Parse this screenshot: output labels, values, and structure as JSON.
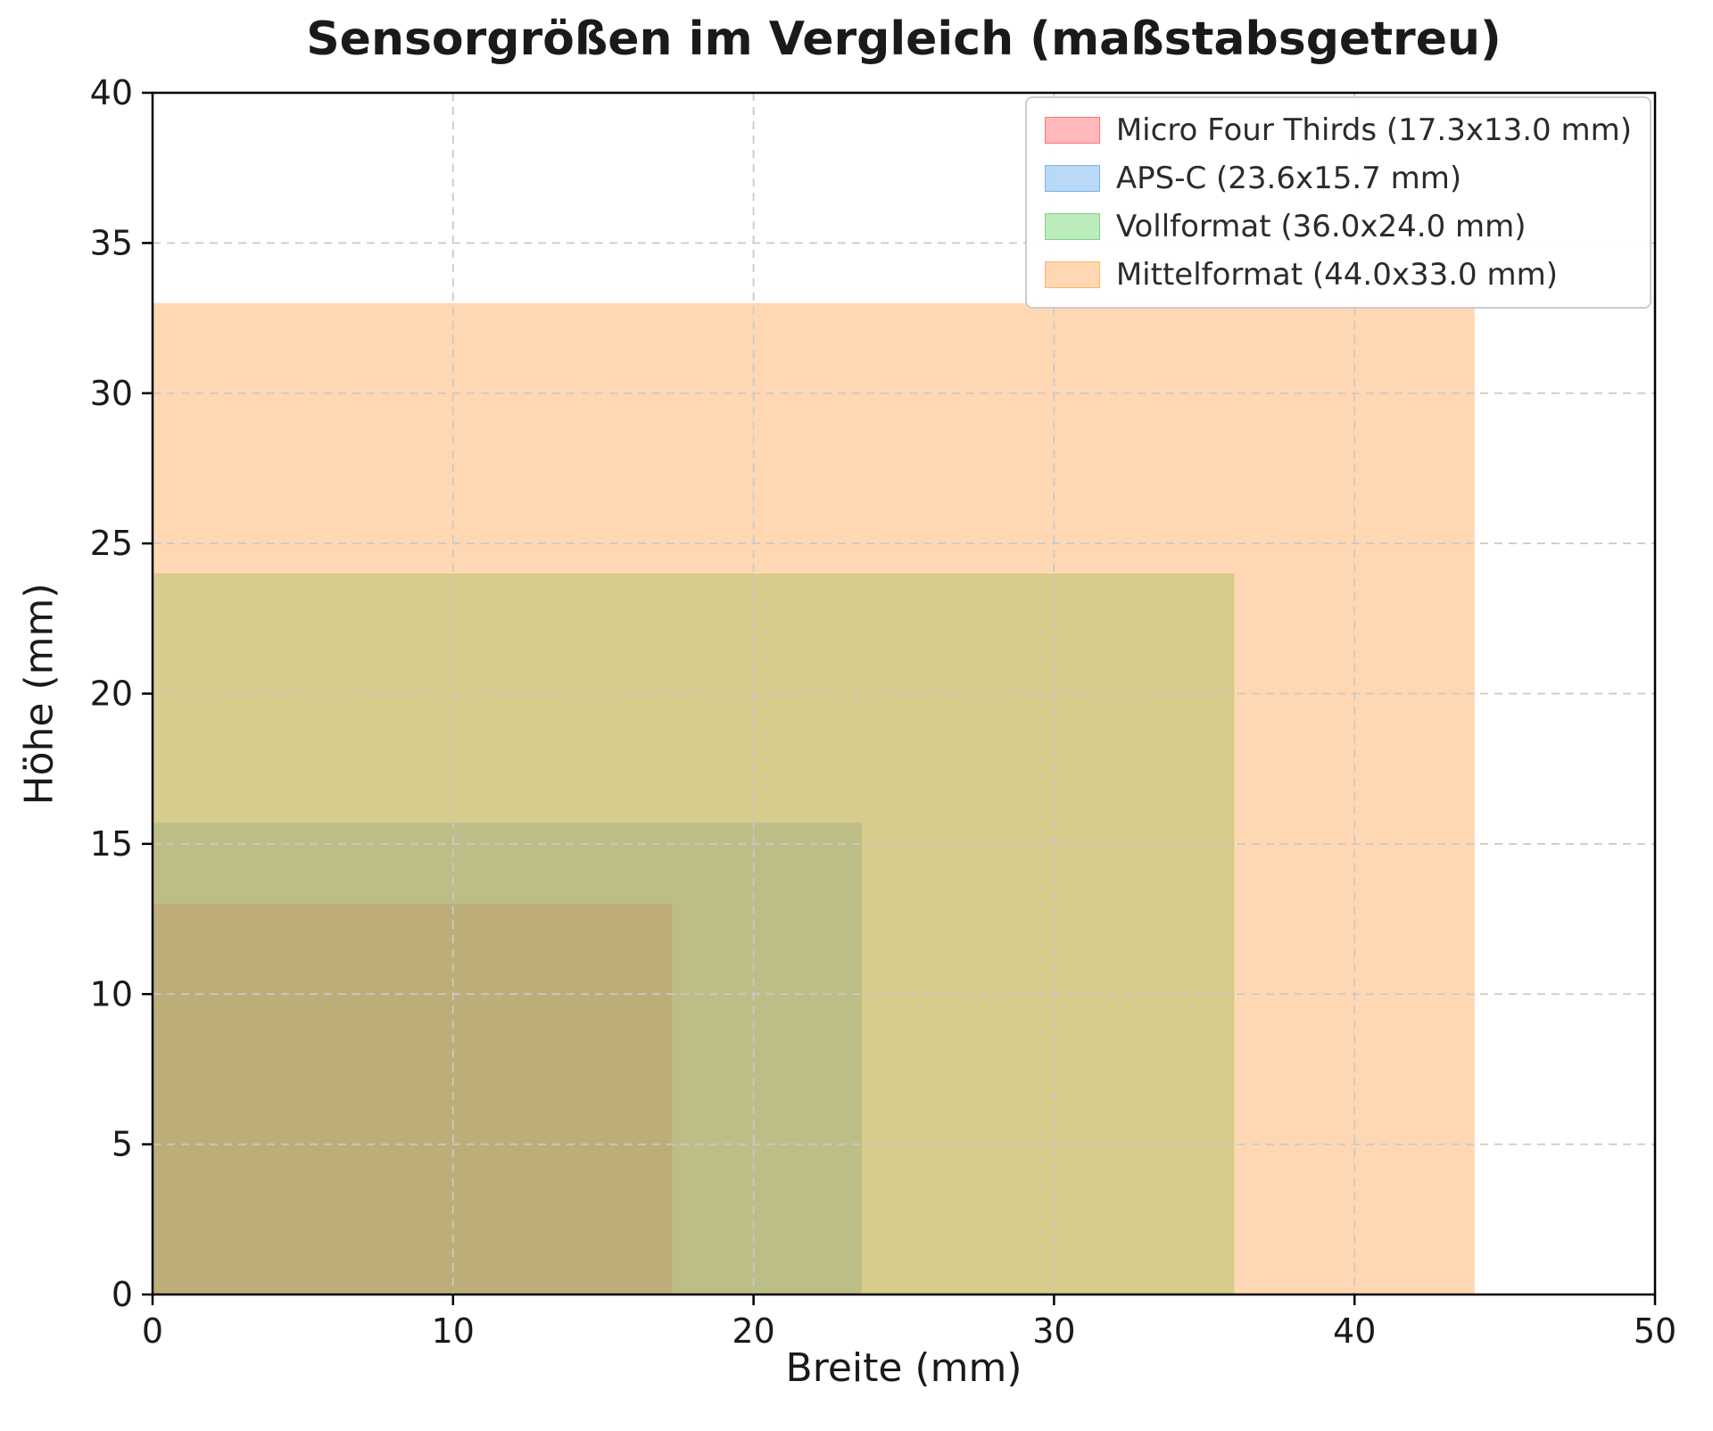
{
  "chart_data": {
    "type": "area",
    "title": "Sensorgrößen im Vergleich (maßstabsgetreu)",
    "xlabel": "Breite (mm)",
    "ylabel": "Höhe (mm)",
    "xlim": [
      0,
      50
    ],
    "ylim": [
      0,
      40
    ],
    "xticks": [
      0,
      10,
      20,
      30,
      40,
      50
    ],
    "yticks": [
      0,
      5,
      10,
      15,
      20,
      25,
      30,
      35,
      40
    ],
    "grid": true,
    "legend_position": "upper right",
    "alpha": 0.4,
    "series": [
      {
        "name": "Micro Four Thirds (17.3x13.0 mm)",
        "width_mm": 17.3,
        "height_mm": 13.0,
        "color": "#ff4d58"
      },
      {
        "name": "APS-C (23.6x15.7 mm)",
        "width_mm": 23.6,
        "height_mm": 15.7,
        "color": "#4f9fe8"
      },
      {
        "name": "Vollformat (36.0x24.0 mm)",
        "width_mm": 36.0,
        "height_mm": 24.0,
        "color": "#58cc58"
      },
      {
        "name": "Mittelformat (44.0x33.0 mm)",
        "width_mm": 44.0,
        "height_mm": 33.0,
        "color": "#ff9e42"
      }
    ]
  }
}
